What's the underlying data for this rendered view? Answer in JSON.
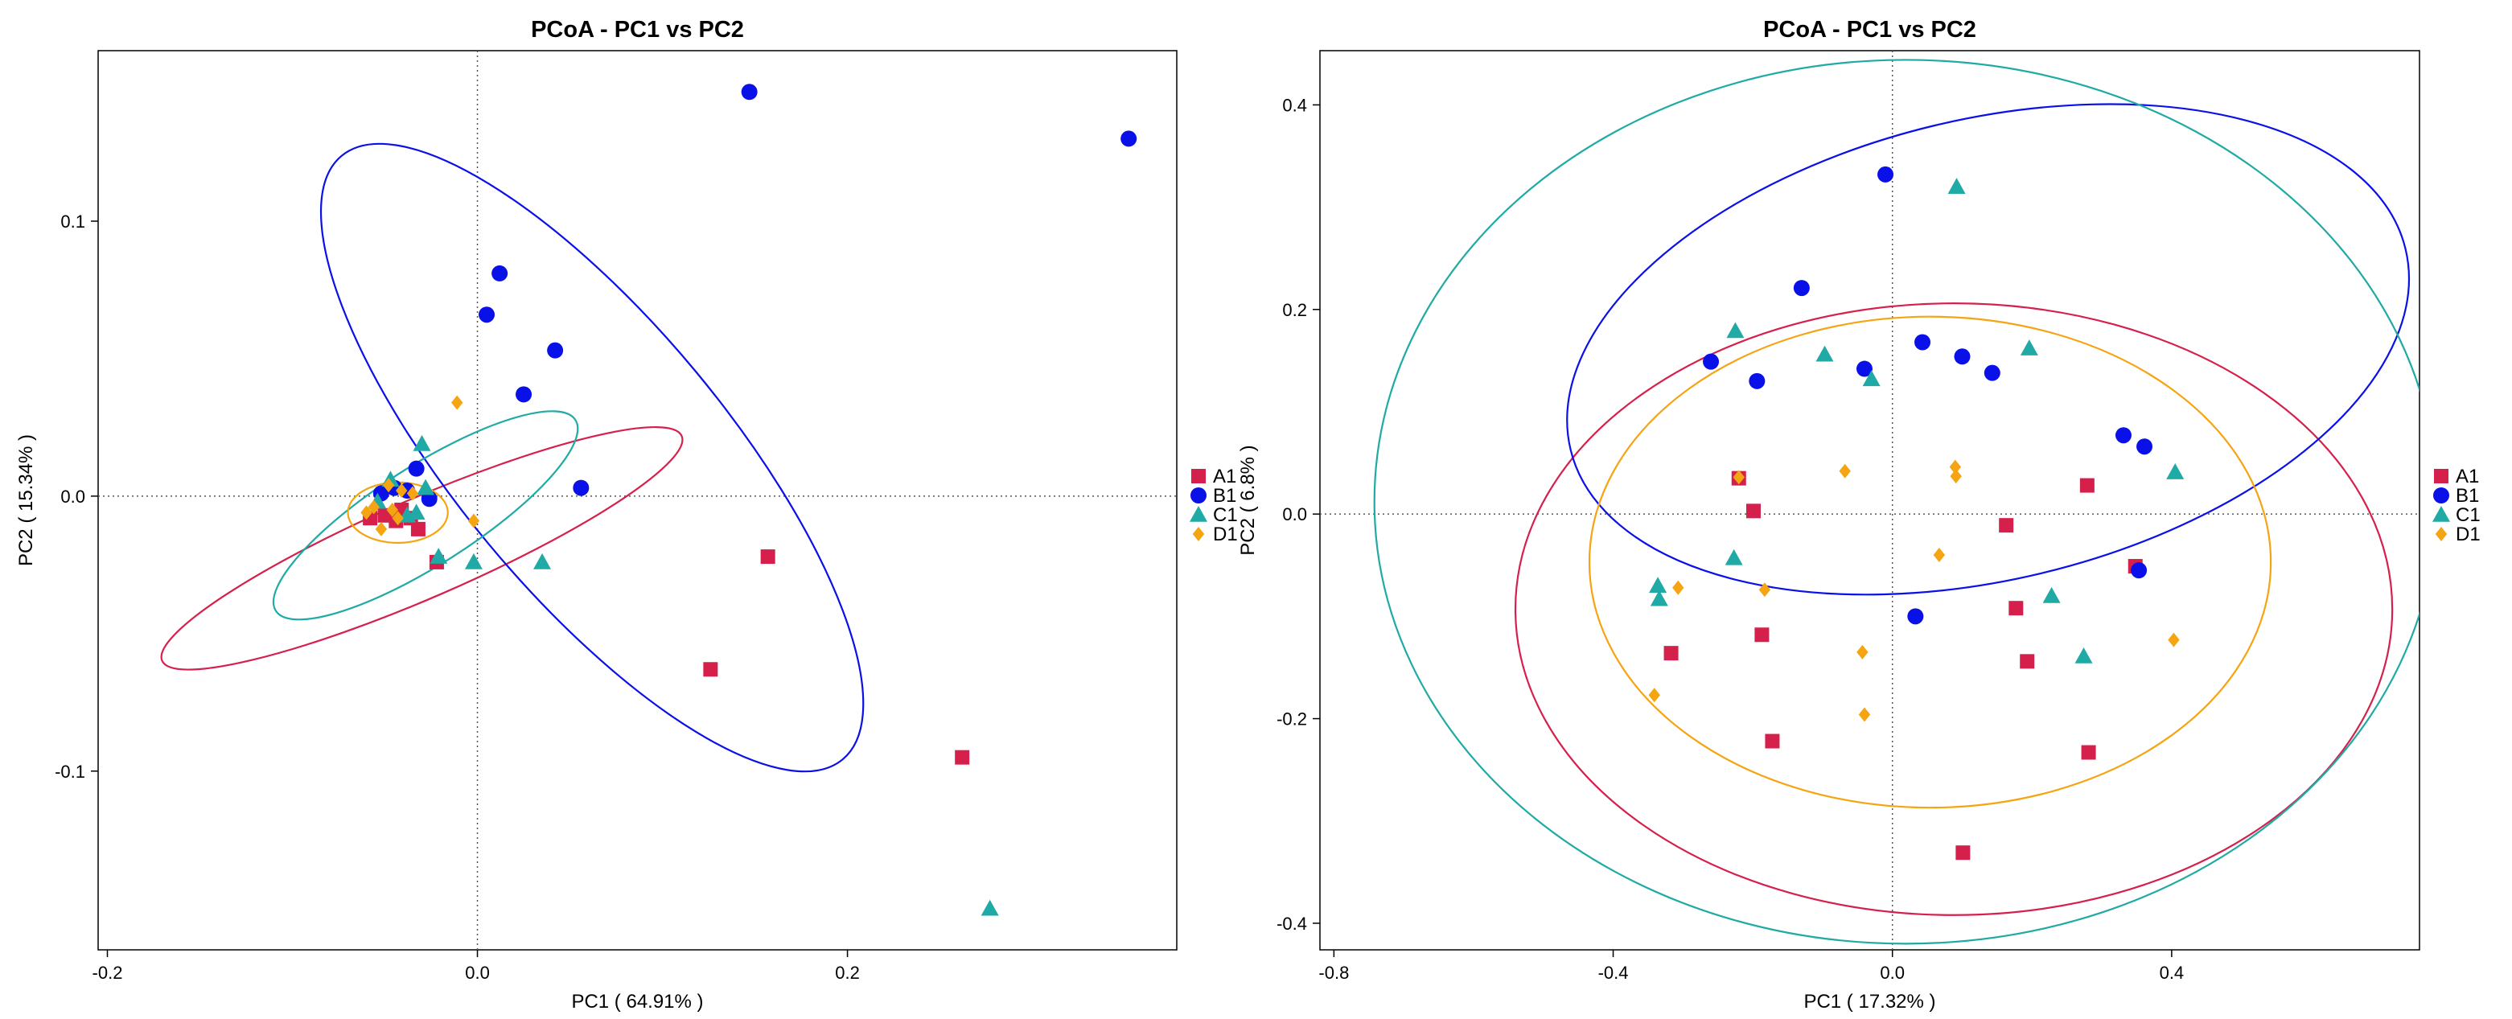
{
  "colors": {
    "A1": "#d6204c",
    "B1": "#0a10e8",
    "C1": "#20aaa5",
    "D1": "#f5a412"
  },
  "legend": [
    {
      "name": "A1",
      "shape": "square"
    },
    {
      "name": "B1",
      "shape": "circle"
    },
    {
      "name": "C1",
      "shape": "triangle"
    },
    {
      "name": "D1",
      "shape": "diamond"
    }
  ],
  "chart_data": [
    {
      "type": "scatter",
      "title": "PCoA - PC1 vs PC2",
      "xlabel": "PC1 ( 64.91% )",
      "ylabel": "PC2 ( 15.34% )",
      "xlim": [
        -0.205,
        0.378
      ],
      "ylim": [
        -0.165,
        0.162
      ],
      "xticks": [
        {
          "v": -0.2,
          "label": "-0.2"
        },
        {
          "v": 0.0,
          "label": "0.0"
        },
        {
          "v": 0.2,
          "label": "0.2"
        }
      ],
      "yticks": [
        {
          "v": -0.1,
          "label": "-0.1"
        },
        {
          "v": 0.0,
          "label": "0.0"
        },
        {
          "v": 0.1,
          "label": "0.1"
        }
      ],
      "refline_x": 0,
      "refline_y": 0,
      "legend_position": "right",
      "series": [
        {
          "name": "A1",
          "points": [
            [
              0.157,
              -0.022
            ],
            [
              0.126,
              -0.063
            ],
            [
              0.262,
              -0.095
            ],
            [
              -0.022,
              -0.024
            ],
            [
              -0.032,
              -0.012
            ],
            [
              -0.044,
              -0.009
            ],
            [
              -0.058,
              -0.008
            ],
            [
              -0.05,
              -0.007
            ],
            [
              -0.041,
              -0.005
            ],
            [
              -0.036,
              -0.008
            ]
          ]
        },
        {
          "name": "B1",
          "points": [
            [
              0.147,
              0.147
            ],
            [
              0.352,
              0.13
            ],
            [
              0.012,
              0.081
            ],
            [
              0.005,
              0.066
            ],
            [
              0.042,
              0.053
            ],
            [
              0.025,
              0.037
            ],
            [
              0.056,
              0.003
            ],
            [
              -0.033,
              0.01
            ],
            [
              -0.038,
              0.002
            ],
            [
              -0.026,
              -0.001
            ],
            [
              -0.045,
              0.003
            ],
            [
              -0.052,
              0.001
            ]
          ]
        },
        {
          "name": "C1",
          "points": [
            [
              0.277,
              -0.15
            ],
            [
              -0.03,
              0.019
            ],
            [
              0.035,
              -0.024
            ],
            [
              -0.002,
              -0.024
            ],
            [
              -0.021,
              -0.022
            ],
            [
              -0.047,
              0.006
            ],
            [
              -0.028,
              0.003
            ],
            [
              -0.038,
              -0.007
            ],
            [
              -0.054,
              -0.002
            ],
            [
              -0.033,
              -0.006
            ]
          ]
        },
        {
          "name": "D1",
          "points": [
            [
              -0.011,
              0.034
            ],
            [
              -0.002,
              -0.009
            ],
            [
              -0.052,
              -0.012
            ],
            [
              -0.046,
              -0.005
            ],
            [
              -0.041,
              0.002
            ],
            [
              -0.056,
              -0.004
            ],
            [
              -0.035,
              0.001
            ],
            [
              -0.048,
              0.004
            ],
            [
              -0.043,
              -0.008
            ],
            [
              -0.06,
              -0.006
            ]
          ]
        }
      ],
      "ellipses": [
        {
          "name": "A1",
          "cx": -0.03,
          "cy": -0.019,
          "rx": 0.153,
          "ry": 0.018,
          "angle": -23.4
        },
        {
          "name": "B1",
          "cx": 0.062,
          "cy": 0.014,
          "rx": 0.212,
          "ry": 0.049,
          "angle": 50.3
        },
        {
          "name": "C1",
          "cx": -0.028,
          "cy": -0.007,
          "rx": 0.096,
          "ry": 0.018,
          "angle": -32.5
        },
        {
          "name": "D1",
          "cx": -0.043,
          "cy": -0.006,
          "rx": 0.027,
          "ry": 0.011,
          "angle": 0
        }
      ]
    },
    {
      "type": "scatter",
      "title": "PCoA - PC1 vs PC2",
      "xlabel": "PC1 ( 17.32% )",
      "ylabel": "PC2 ( 6.8% )",
      "xlim": [
        -0.82,
        0.755
      ],
      "ylim": [
        -0.426,
        0.453
      ],
      "xticks": [
        {
          "v": -0.8,
          "label": "-0.8"
        },
        {
          "v": -0.4,
          "label": "-0.4"
        },
        {
          "v": 0.0,
          "label": "0.0"
        },
        {
          "v": 0.4,
          "label": "0.4"
        }
      ],
      "yticks": [
        {
          "v": -0.4,
          "label": "-0.4"
        },
        {
          "v": -0.2,
          "label": "-0.2"
        },
        {
          "v": 0.0,
          "label": "0.0"
        },
        {
          "v": 0.2,
          "label": "0.2"
        },
        {
          "v": 0.4,
          "label": "0.4"
        }
      ],
      "refline_x": 0,
      "refline_y": 0,
      "legend_position": "right",
      "series": [
        {
          "name": "A1",
          "points": [
            [
              0.101,
              -0.331
            ],
            [
              -0.172,
              -0.222
            ],
            [
              0.281,
              -0.233
            ],
            [
              -0.317,
              -0.136
            ],
            [
              -0.187,
              -0.118
            ],
            [
              0.193,
              -0.144
            ],
            [
              0.177,
              -0.092
            ],
            [
              0.348,
              -0.051
            ],
            [
              0.163,
              -0.011
            ],
            [
              0.279,
              0.028
            ],
            [
              -0.199,
              0.003
            ],
            [
              -0.22,
              0.035
            ]
          ]
        },
        {
          "name": "B1",
          "points": [
            [
              -0.01,
              0.332
            ],
            [
              -0.13,
              0.221
            ],
            [
              -0.26,
              0.149
            ],
            [
              -0.194,
              0.13
            ],
            [
              0.043,
              0.168
            ],
            [
              0.1,
              0.154
            ],
            [
              -0.04,
              0.142
            ],
            [
              0.143,
              0.138
            ],
            [
              0.331,
              0.077
            ],
            [
              0.361,
              0.066
            ],
            [
              0.353,
              -0.055
            ],
            [
              0.033,
              -0.1
            ]
          ]
        },
        {
          "name": "C1",
          "points": [
            [
              0.092,
              0.32
            ],
            [
              -0.225,
              0.179
            ],
            [
              -0.097,
              0.156
            ],
            [
              0.196,
              0.162
            ],
            [
              -0.03,
              0.132
            ],
            [
              0.405,
              0.041
            ],
            [
              -0.227,
              -0.043
            ],
            [
              -0.336,
              -0.07
            ],
            [
              -0.334,
              -0.083
            ],
            [
              0.228,
              -0.08
            ],
            [
              0.274,
              -0.139
            ]
          ]
        },
        {
          "name": "D1",
          "points": [
            [
              -0.22,
              0.036
            ],
            [
              -0.068,
              0.042
            ],
            [
              0.09,
              0.046
            ],
            [
              0.091,
              0.037
            ],
            [
              -0.307,
              -0.072
            ],
            [
              -0.183,
              -0.074
            ],
            [
              0.067,
              -0.04
            ],
            [
              -0.043,
              -0.135
            ],
            [
              0.403,
              -0.123
            ],
            [
              -0.341,
              -0.177
            ],
            [
              -0.04,
              -0.196
            ]
          ]
        }
      ],
      "ellipses": [
        {
          "name": "A1",
          "cx": 0.088,
          "cy": -0.093,
          "rx": 0.628,
          "ry": 0.299,
          "angle": 0
        },
        {
          "name": "B1",
          "cx": 0.137,
          "cy": 0.161,
          "rx": 0.615,
          "ry": 0.225,
          "angle": -13.5
        },
        {
          "name": "C1",
          "cx": 0.019,
          "cy": 0.012,
          "rx": 0.761,
          "ry": 0.432,
          "angle": 0
        },
        {
          "name": "D1",
          "cx": 0.054,
          "cy": -0.047,
          "rx": 0.488,
          "ry": 0.24,
          "angle": 0
        }
      ]
    }
  ]
}
